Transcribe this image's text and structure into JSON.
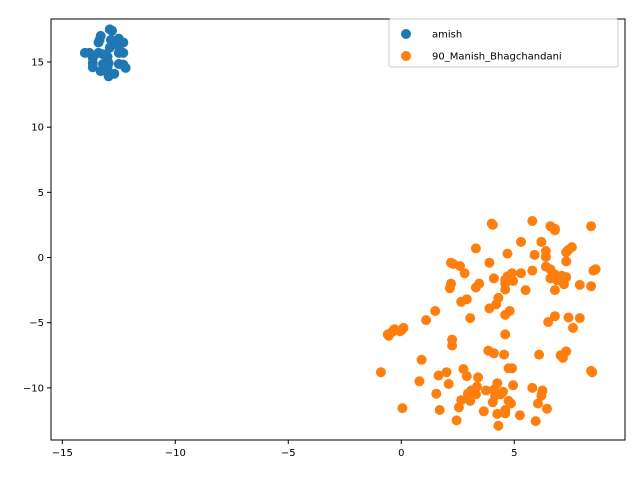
{
  "chart_data": {
    "type": "scatter",
    "title": "",
    "xlabel": "",
    "ylabel": "",
    "xlim": [
      -15.5,
      9.9
    ],
    "ylim": [
      -14.0,
      18.3
    ],
    "xticks": [
      -15,
      -10,
      -5,
      0,
      5
    ],
    "yticks": [
      -10,
      -5,
      0,
      5,
      10,
      15
    ],
    "grid": false,
    "legend_position": "top-right",
    "series": [
      {
        "name": "amish",
        "color": "#1f77b4",
        "points": [
          [
            -12.9,
            17.5
          ],
          [
            -12.8,
            17.4
          ],
          [
            -13.3,
            17.0
          ],
          [
            -13.35,
            16.7
          ],
          [
            -12.85,
            16.7
          ],
          [
            -12.7,
            16.5
          ],
          [
            -12.5,
            16.8
          ],
          [
            -12.3,
            16.5
          ],
          [
            -13.4,
            16.5
          ],
          [
            -12.5,
            16.2
          ],
          [
            -12.9,
            16.1
          ],
          [
            -14.0,
            15.7
          ],
          [
            -13.8,
            15.7
          ],
          [
            -13.4,
            15.7
          ],
          [
            -13.2,
            15.6
          ],
          [
            -12.5,
            15.7
          ],
          [
            -12.3,
            15.7
          ],
          [
            -13.65,
            15.3
          ],
          [
            -13.0,
            15.4
          ],
          [
            -13.65,
            14.9
          ],
          [
            -13.2,
            14.85
          ],
          [
            -12.95,
            14.9
          ],
          [
            -12.5,
            14.85
          ],
          [
            -12.3,
            14.8
          ],
          [
            -13.65,
            14.6
          ],
          [
            -13.0,
            14.6
          ],
          [
            -12.2,
            14.55
          ],
          [
            -13.3,
            14.3
          ],
          [
            -12.7,
            14.1
          ],
          [
            -12.95,
            13.9
          ]
        ]
      },
      {
        "name": "90_Manish_Bhagchandani",
        "color": "#ff7f0e",
        "points": [
          [
            5.8,
            2.8
          ],
          [
            4.0,
            2.6
          ],
          [
            4.05,
            2.5
          ],
          [
            6.6,
            2.4
          ],
          [
            8.4,
            2.4
          ],
          [
            6.8,
            2.2
          ],
          [
            6.8,
            2.1
          ],
          [
            5.3,
            1.2
          ],
          [
            6.2,
            1.2
          ],
          [
            7.55,
            0.8
          ],
          [
            3.3,
            0.7
          ],
          [
            7.4,
            0.6
          ],
          [
            6.4,
            0.5
          ],
          [
            7.3,
            0.4
          ],
          [
            4.7,
            0.3
          ],
          [
            5.9,
            0.2
          ],
          [
            6.4,
            0.05
          ],
          [
            2.2,
            -0.4
          ],
          [
            2.3,
            -0.5
          ],
          [
            3.9,
            -0.4
          ],
          [
            7.3,
            -0.3
          ],
          [
            2.6,
            -0.65
          ],
          [
            6.4,
            -0.7
          ],
          [
            6.6,
            -0.9
          ],
          [
            8.6,
            -0.9
          ],
          [
            8.5,
            -1.0
          ],
          [
            5.8,
            -1.0
          ],
          [
            2.8,
            -1.2
          ],
          [
            5.3,
            -1.2
          ],
          [
            4.9,
            -1.2
          ],
          [
            6.8,
            -1.3
          ],
          [
            7.1,
            -1.4
          ],
          [
            4.7,
            -1.45
          ],
          [
            7.3,
            -1.5
          ],
          [
            4.1,
            -1.6
          ],
          [
            6.6,
            -1.6
          ],
          [
            4.6,
            -1.7
          ],
          [
            6.9,
            -1.75
          ],
          [
            4.95,
            -1.8
          ],
          [
            3.45,
            -2.0
          ],
          [
            2.2,
            -2.0
          ],
          [
            4.6,
            -2.0
          ],
          [
            7.2,
            -2.05
          ],
          [
            7.9,
            -2.1
          ],
          [
            8.4,
            -2.2
          ],
          [
            3.3,
            -2.3
          ],
          [
            2.15,
            -2.35
          ],
          [
            6.8,
            -2.5
          ],
          [
            4.6,
            -2.45
          ],
          [
            5.5,
            -2.5
          ],
          [
            4.3,
            -3.1
          ],
          [
            2.9,
            -3.2
          ],
          [
            2.65,
            -3.4
          ],
          [
            4.2,
            -3.6
          ],
          [
            3.9,
            -3.9
          ],
          [
            4.8,
            -4.1
          ],
          [
            1.5,
            -4.1
          ],
          [
            4.6,
            -4.4
          ],
          [
            6.8,
            -4.5
          ],
          [
            7.4,
            -4.6
          ],
          [
            3.05,
            -4.65
          ],
          [
            7.9,
            -4.65
          ],
          [
            1.1,
            -4.8
          ],
          [
            6.5,
            -4.95
          ],
          [
            7.6,
            -5.4
          ],
          [
            0.1,
            -5.4
          ],
          [
            -0.3,
            -5.5
          ],
          [
            0.0,
            -5.6
          ],
          [
            -0.05,
            -5.65
          ],
          [
            -0.4,
            -5.7
          ],
          [
            4.6,
            -5.9
          ],
          [
            -0.6,
            -5.9
          ],
          [
            -0.55,
            -6.0
          ],
          [
            2.25,
            -6.3
          ],
          [
            2.25,
            -6.75
          ],
          [
            3.85,
            -7.15
          ],
          [
            7.3,
            -7.2
          ],
          [
            6.1,
            -7.45
          ],
          [
            4.1,
            -7.35
          ],
          [
            4.55,
            -7.45
          ],
          [
            7.05,
            -7.5
          ],
          [
            7.15,
            -7.7
          ],
          [
            0.9,
            -7.85
          ],
          [
            4.75,
            -8.5
          ],
          [
            4.9,
            -8.5
          ],
          [
            2.75,
            -8.55
          ],
          [
            8.4,
            -8.7
          ],
          [
            -0.9,
            -8.8
          ],
          [
            2.0,
            -8.8
          ],
          [
            8.45,
            -8.8
          ],
          [
            1.65,
            -9.05
          ],
          [
            2.9,
            -9.1
          ],
          [
            3.4,
            -9.2
          ],
          [
            0.8,
            -9.5
          ],
          [
            2.1,
            -9.7
          ],
          [
            4.25,
            -9.65
          ],
          [
            4.95,
            -9.8
          ],
          [
            5.8,
            -10.0
          ],
          [
            3.35,
            -9.9
          ],
          [
            3.1,
            -10.2
          ],
          [
            4.1,
            -10.15
          ],
          [
            3.75,
            -10.2
          ],
          [
            4.5,
            -10.3
          ],
          [
            2.95,
            -10.45
          ],
          [
            6.25,
            -10.2
          ],
          [
            1.55,
            -10.45
          ],
          [
            3.3,
            -10.5
          ],
          [
            4.4,
            -10.5
          ],
          [
            4.15,
            -10.6
          ],
          [
            6.2,
            -10.6
          ],
          [
            3.05,
            -11.0
          ],
          [
            2.65,
            -10.95
          ],
          [
            4.05,
            -11.1
          ],
          [
            4.75,
            -11.0
          ],
          [
            4.85,
            -11.2
          ],
          [
            6.05,
            -11.2
          ],
          [
            0.05,
            -11.55
          ],
          [
            2.55,
            -11.5
          ],
          [
            1.7,
            -11.7
          ],
          [
            3.65,
            -11.8
          ],
          [
            4.6,
            -11.7
          ],
          [
            6.45,
            -11.6
          ],
          [
            4.25,
            -12.0
          ],
          [
            4.6,
            -11.95
          ],
          [
            5.25,
            -12.1
          ],
          [
            2.45,
            -12.5
          ],
          [
            5.95,
            -12.55
          ],
          [
            4.3,
            -12.9
          ]
        ]
      }
    ]
  }
}
